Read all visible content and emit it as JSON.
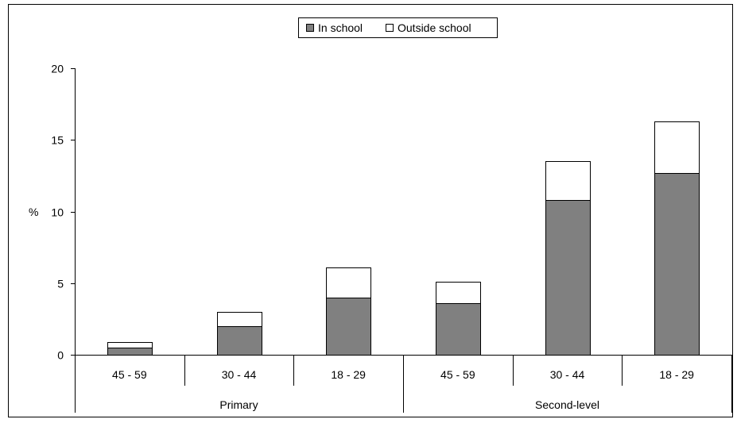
{
  "chart_data": {
    "type": "bar",
    "stacked": true,
    "title": "",
    "xlabel": "",
    "ylabel": "%",
    "ylim": [
      0,
      20
    ],
    "yticks": [
      0,
      5,
      10,
      15,
      20
    ],
    "grid": false,
    "legend_position": "top",
    "groups": [
      {
        "label": "Primary",
        "categories": [
          "45 - 59",
          "30 - 44",
          "18 - 29"
        ]
      },
      {
        "label": "Second-level",
        "categories": [
          "45 - 59",
          "30 - 44",
          "18 - 29"
        ]
      }
    ],
    "categories": [
      "45 - 59",
      "30 - 44",
      "18 - 29",
      "45 - 59",
      "30 - 44",
      "18 - 29"
    ],
    "series": [
      {
        "name": "In school",
        "color": "#808080",
        "values": [
          0.5,
          2.0,
          4.0,
          3.6,
          10.8,
          12.7
        ]
      },
      {
        "name": "Outside school",
        "color": "#ffffff",
        "values": [
          0.4,
          1.0,
          2.1,
          1.5,
          2.7,
          3.6
        ]
      }
    ]
  }
}
